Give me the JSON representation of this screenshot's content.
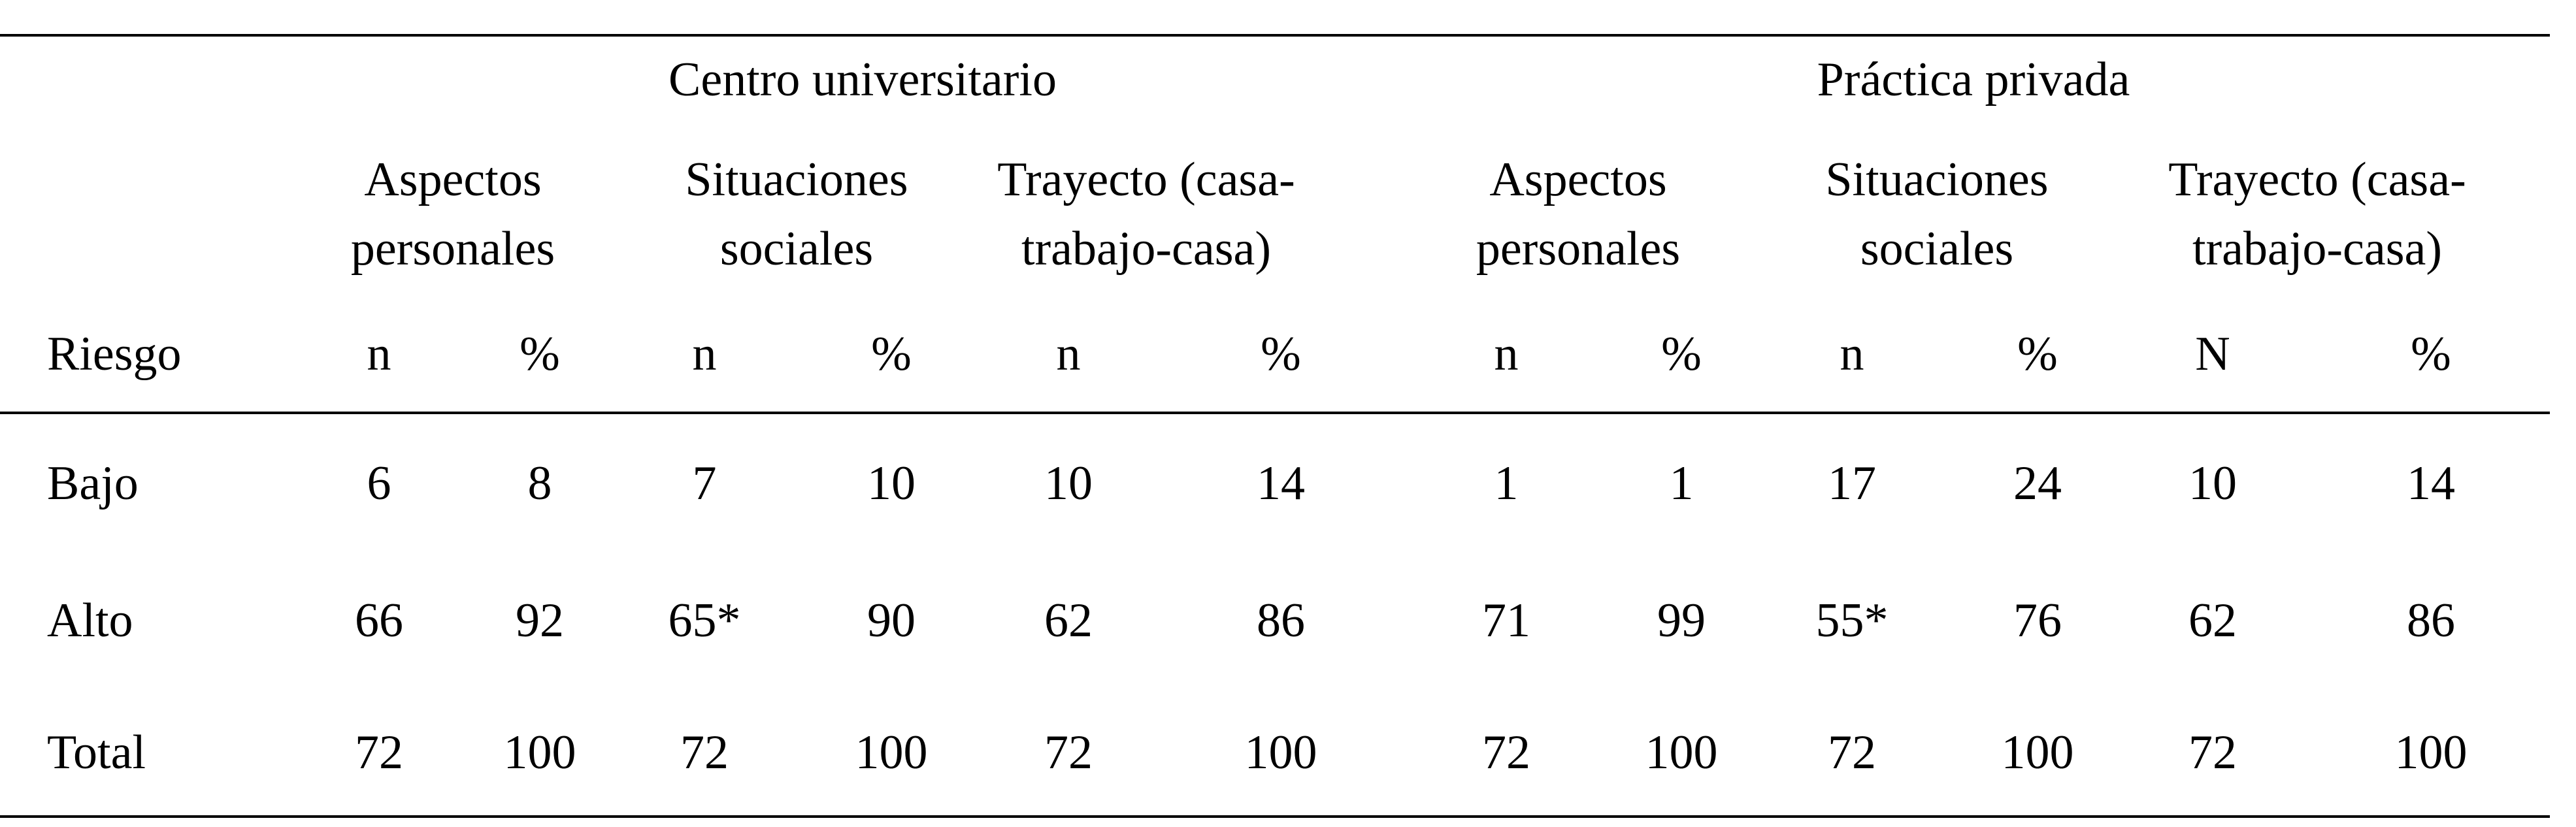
{
  "groups": [
    {
      "title": "Centro universitario",
      "subgroups": [
        {
          "line1": "Aspectos",
          "line2": "personales"
        },
        {
          "line1": "Situaciones",
          "line2": "sociales"
        },
        {
          "line1": "Trayecto (casa-",
          "line2": "trabajo-casa)"
        }
      ]
    },
    {
      "title": "Práctica privada",
      "subgroups": [
        {
          "line1": "Aspectos",
          "line2": "personales"
        },
        {
          "line1": "Situaciones",
          "line2": "sociales"
        },
        {
          "line1": "Trayecto (casa-",
          "line2": "trabajo-casa)"
        }
      ]
    }
  ],
  "header_row": {
    "label": "Riesgo",
    "columns": [
      "n",
      "%",
      "n",
      "%",
      "n",
      "%",
      "n",
      "%",
      "n",
      "%",
      "N",
      "%"
    ]
  },
  "rows": [
    {
      "label": "Bajo",
      "values": [
        "6",
        "8",
        "7",
        "10",
        "10",
        "14",
        "1",
        "1",
        "17",
        "24",
        "10",
        "14"
      ]
    },
    {
      "label": "Alto",
      "values": [
        "66",
        "92",
        "65*",
        "90",
        "62",
        "86",
        "71",
        "99",
        "55*",
        "76",
        "62",
        "86"
      ]
    },
    {
      "label": "Total",
      "values": [
        "72",
        "100",
        "72",
        "100",
        "72",
        "100",
        "72",
        "100",
        "72",
        "100",
        "72",
        "100"
      ]
    }
  ]
}
